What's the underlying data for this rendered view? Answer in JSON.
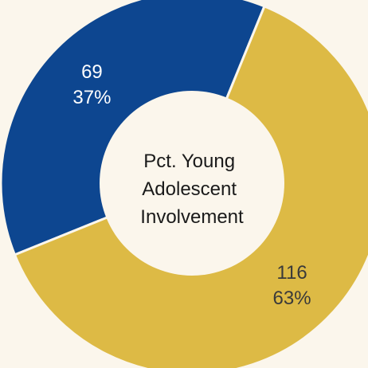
{
  "chart_data": {
    "type": "pie",
    "donut": true,
    "center_label": [
      "Pct. Young",
      "Adolescent",
      "Involvement"
    ],
    "slices": [
      {
        "value": 69,
        "percent_label": "37%",
        "color": "#0D4690",
        "label_color": "#FFFFFF"
      },
      {
        "value": 116,
        "percent_label": "63%",
        "color": "#DDBA45",
        "label_color": "#3A3A3A"
      }
    ],
    "background_color": "#FBF6EC",
    "center_color": "#FBF6EC"
  }
}
